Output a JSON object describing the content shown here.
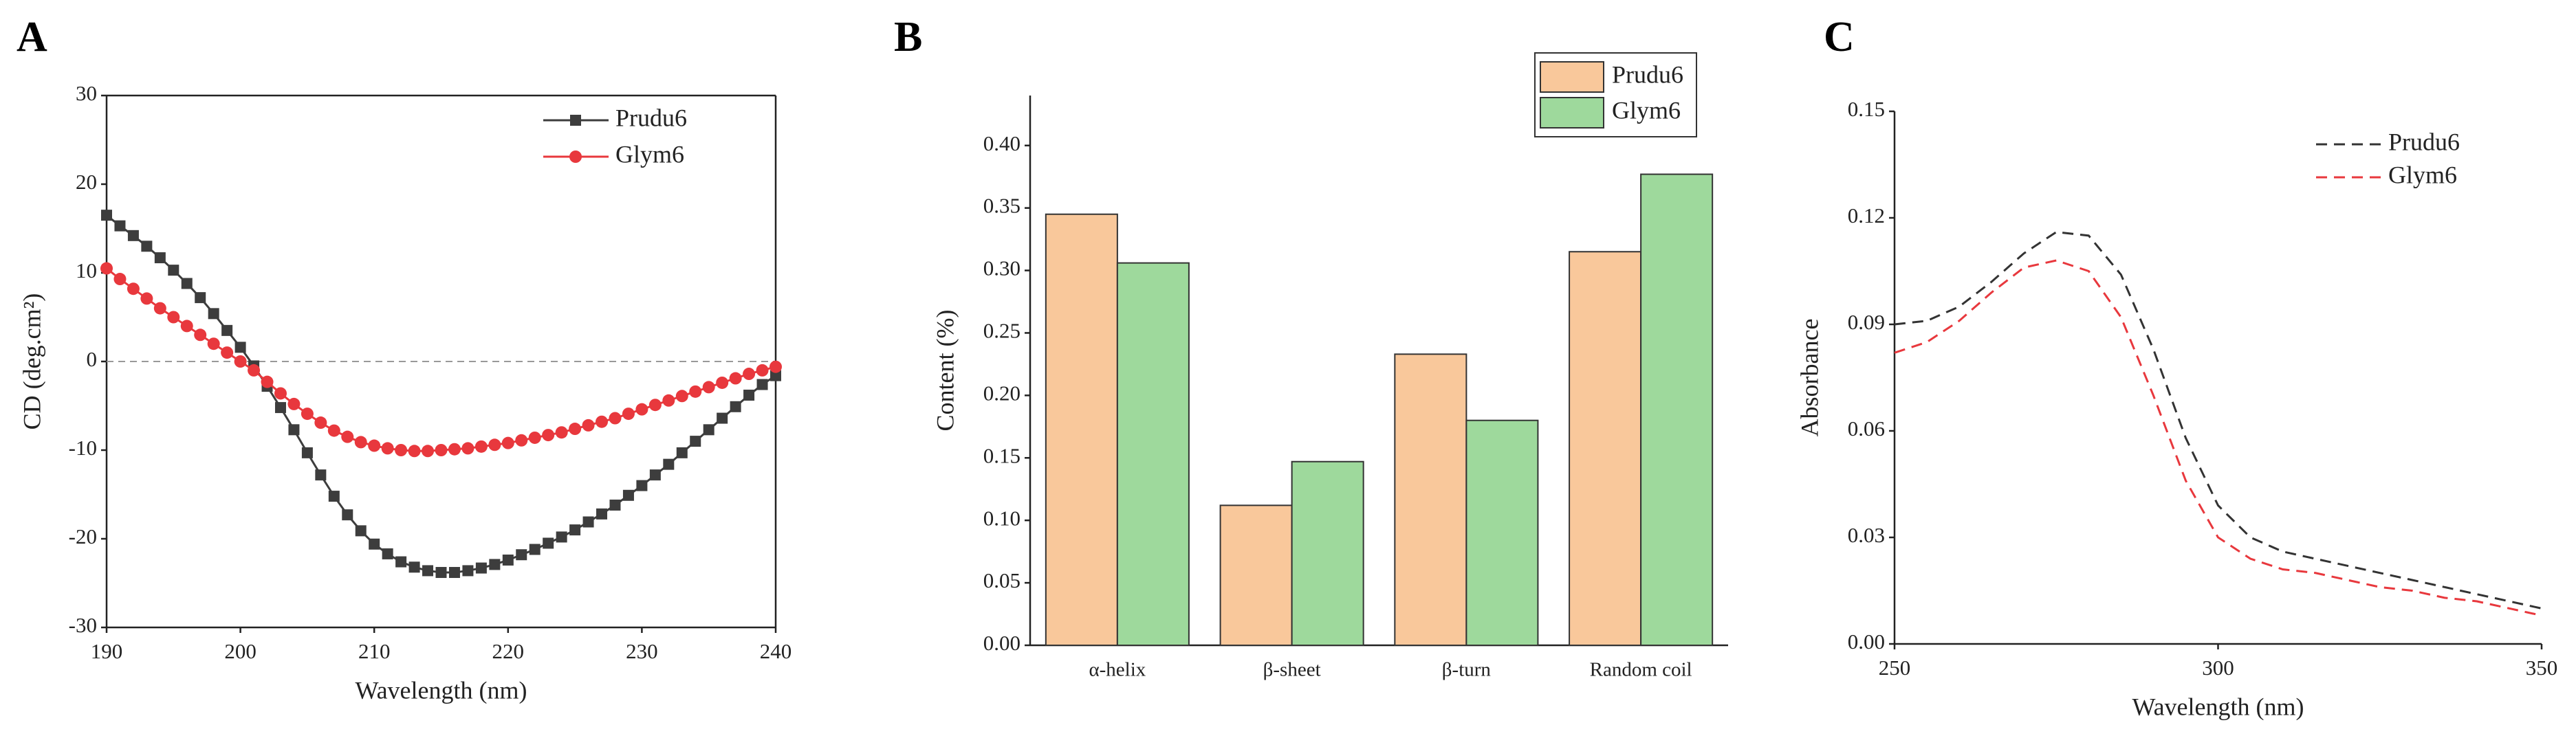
{
  "chart_data": [
    {
      "type": "line",
      "panel": "A",
      "xlabel": "Wavelength (nm)",
      "ylabel": "CD (deg.cm²)",
      "x": [
        190,
        191,
        192,
        193,
        194,
        195,
        196,
        197,
        198,
        199,
        200,
        201,
        202,
        203,
        204,
        205,
        206,
        207,
        208,
        209,
        210,
        211,
        212,
        213,
        214,
        215,
        216,
        217,
        218,
        219,
        220,
        221,
        222,
        223,
        224,
        225,
        226,
        227,
        228,
        229,
        230,
        231,
        232,
        233,
        234,
        235,
        236,
        237,
        238,
        239,
        240
      ],
      "xlim": [
        190,
        240
      ],
      "xticks": [
        190,
        200,
        210,
        220,
        230,
        240
      ],
      "ylim": [
        -30,
        30
      ],
      "yticks": [
        -30,
        -20,
        -10,
        0,
        10,
        20,
        30
      ],
      "reference_line": 0,
      "frame": "box",
      "series": [
        {
          "name": "Prudu6",
          "color": "#3d3d3d",
          "marker": "square",
          "linestyle": "solid",
          "values": [
            16.5,
            15.3,
            14.2,
            13,
            11.7,
            10.3,
            8.8,
            7.2,
            5.4,
            3.5,
            1.6,
            -0.5,
            -2.8,
            -5.2,
            -7.7,
            -10.3,
            -12.8,
            -15.2,
            -17.3,
            -19.1,
            -20.6,
            -21.7,
            -22.6,
            -23.2,
            -23.6,
            -23.8,
            -23.8,
            -23.6,
            -23.3,
            -22.9,
            -22.4,
            -21.8,
            -21.2,
            -20.5,
            -19.8,
            -19,
            -18.1,
            -17.2,
            -16.2,
            -15.1,
            -14,
            -12.8,
            -11.6,
            -10.3,
            -9,
            -7.7,
            -6.4,
            -5.1,
            -3.8,
            -2.6,
            -1.6
          ]
        },
        {
          "name": "Glym6",
          "color": "#e8383d",
          "marker": "circle",
          "linestyle": "solid",
          "values": [
            10.5,
            9.3,
            8.2,
            7.1,
            6,
            5,
            4,
            3,
            2,
            1,
            0,
            -1,
            -2.3,
            -3.6,
            -4.8,
            -5.9,
            -6.9,
            -7.8,
            -8.5,
            -9.1,
            -9.5,
            -9.8,
            -10,
            -10.1,
            -10.1,
            -10,
            -9.9,
            -9.8,
            -9.6,
            -9.4,
            -9.2,
            -8.9,
            -8.6,
            -8.3,
            -8,
            -7.6,
            -7.2,
            -6.8,
            -6.4,
            -5.9,
            -5.4,
            -4.9,
            -4.4,
            -3.9,
            -3.4,
            -2.9,
            -2.4,
            -1.9,
            -1.4,
            -1,
            -0.6
          ]
        }
      ]
    },
    {
      "type": "bar",
      "panel": "B",
      "ylabel": "Content (%)",
      "categories": [
        "α-helix",
        "β-sheet",
        "β-turn",
        "Random coil"
      ],
      "ylim": [
        0,
        0.44
      ],
      "yticks": [
        {
          "value": 0,
          "label": "0.00"
        },
        {
          "value": 0.05,
          "label": "0.05"
        },
        {
          "value": 0.1,
          "label": "0.10"
        },
        {
          "value": 0.15,
          "label": "0.15"
        },
        {
          "value": 0.2,
          "label": "0.20"
        },
        {
          "value": 0.25,
          "label": "0.25"
        },
        {
          "value": 0.3,
          "label": "0.30"
        },
        {
          "value": 0.35,
          "label": "0.35"
        },
        {
          "value": 0.4,
          "label": "0.40"
        }
      ],
      "frame": "axes",
      "series": [
        {
          "name": "Prudu6",
          "color": "#f9c89b",
          "values": [
            0.345,
            0.112,
            0.233,
            0.315
          ]
        },
        {
          "name": "Glym6",
          "color": "#9ed99c",
          "values": [
            0.306,
            0.147,
            0.18,
            0.377
          ]
        }
      ]
    },
    {
      "type": "line",
      "panel": "C",
      "xlabel": "Wavelength (nm)",
      "ylabel": "Absorbance",
      "x": [
        250,
        255,
        260,
        265,
        270,
        275,
        280,
        285,
        290,
        295,
        300,
        305,
        310,
        315,
        320,
        325,
        330,
        335,
        340,
        345,
        350
      ],
      "xlim": [
        250,
        350
      ],
      "xticks": [
        250,
        300,
        350
      ],
      "ylim": [
        0,
        0.15
      ],
      "yticks": [
        {
          "value": 0,
          "label": "0.00"
        },
        {
          "value": 0.03,
          "label": "0.03"
        },
        {
          "value": 0.06,
          "label": "0.06"
        },
        {
          "value": 0.09,
          "label": "0.09"
        },
        {
          "value": 0.12,
          "label": "0.12"
        },
        {
          "value": 0.15,
          "label": "0.15"
        }
      ],
      "frame": "axes",
      "series": [
        {
          "name": "Prudu6",
          "color": "#333333",
          "linestyle": "dashed",
          "values": [
            0.09,
            0.091,
            0.095,
            0.102,
            0.11,
            0.116,
            0.115,
            0.104,
            0.083,
            0.058,
            0.039,
            0.03,
            0.026,
            0.024,
            0.022,
            0.02,
            0.018,
            0.016,
            0.014,
            0.012,
            0.01
          ]
        },
        {
          "name": "Glym6",
          "color": "#e8383d",
          "linestyle": "dashed",
          "values": [
            0.082,
            0.085,
            0.091,
            0.099,
            0.106,
            0.108,
            0.105,
            0.092,
            0.07,
            0.046,
            0.03,
            0.024,
            0.021,
            0.02,
            0.018,
            0.016,
            0.015,
            0.013,
            0.012,
            0.01,
            0.008
          ]
        }
      ]
    }
  ]
}
